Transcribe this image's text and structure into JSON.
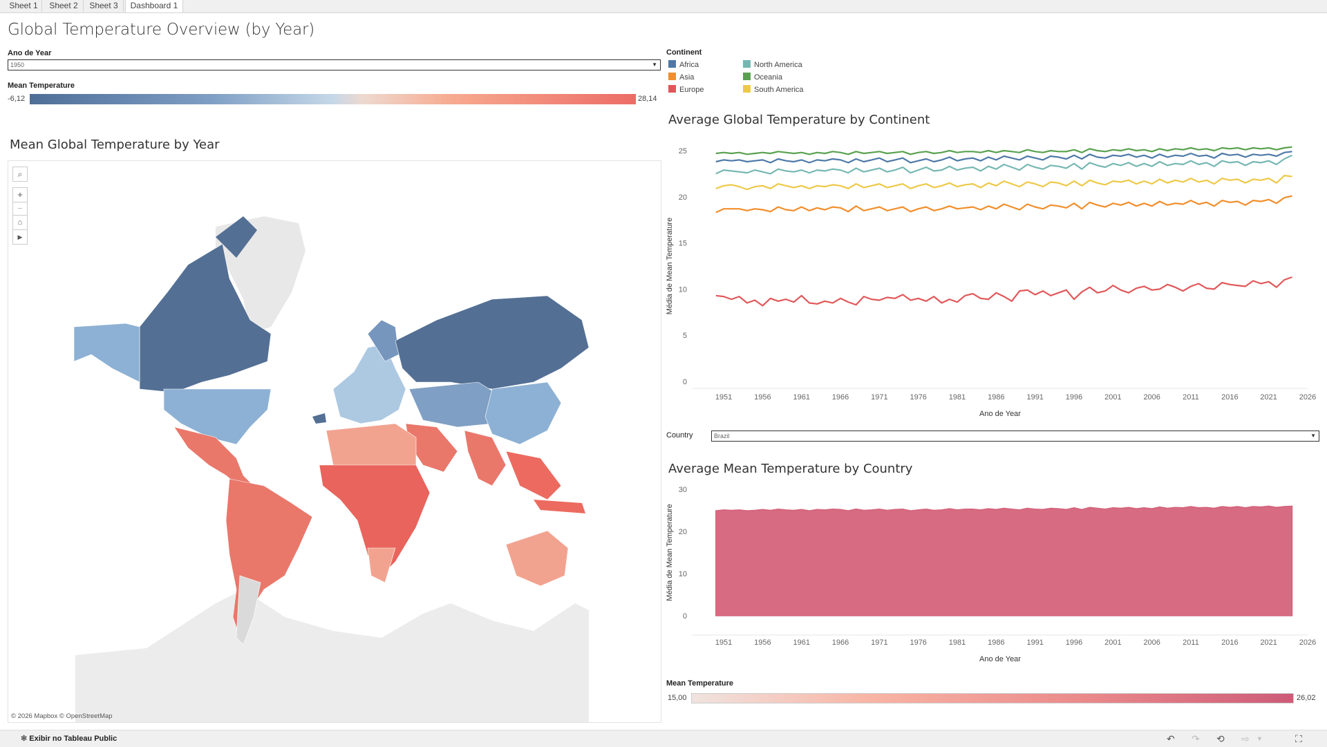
{
  "tabs": [
    {
      "label": "Sheet 1"
    },
    {
      "label": "Sheet 2"
    },
    {
      "label": "Sheet 3"
    },
    {
      "label": "Dashboard 1"
    }
  ],
  "dashboard": {
    "title": "Global Temperature Overview (by Year)"
  },
  "year_filter": {
    "label": "Ano de Year",
    "value": "1950"
  },
  "mean_temp_legend": {
    "label": "Mean Temperature",
    "min": "-6,12",
    "max": "28,14"
  },
  "continent_legend": {
    "label": "Continent",
    "items": [
      {
        "name": "Africa",
        "color": "#4e79a7"
      },
      {
        "name": "Asia",
        "color": "#f28e2b"
      },
      {
        "name": "Europe",
        "color": "#e15759"
      },
      {
        "name": "North America",
        "color": "#76b7b2"
      },
      {
        "name": "Oceania",
        "color": "#59a14f"
      },
      {
        "name": "South America",
        "color": "#edc948"
      }
    ]
  },
  "map": {
    "title": "Mean Global Temperature by Year",
    "attribution": "© 2026 Mapbox  © OpenStreetMap",
    "controls": {
      "search": "search-icon",
      "zoom_in": "plus-icon",
      "zoom_out": "minus-icon",
      "home": "home-icon",
      "pan": "play-icon"
    }
  },
  "country_filter": {
    "label": "Country",
    "value": "Brazil"
  },
  "country_legend": {
    "label": "Mean Temperature",
    "min": "15,00",
    "max": "26,02"
  },
  "bottom_bar": {
    "tableau_link": "Exibir no Tableau Public"
  },
  "chart_data": [
    {
      "type": "line",
      "title": "Average Global Temperature by Continent",
      "xlabel": "Ano de Year",
      "ylabel": "Média de Mean Temperature",
      "xlim": [
        1947,
        2026
      ],
      "ylim": [
        0,
        25
      ],
      "x_ticks": [
        "1951",
        "1956",
        "1961",
        "1966",
        "1971",
        "1976",
        "1981",
        "1986",
        "1991",
        "1996",
        "2001",
        "2006",
        "2011",
        "2016",
        "2021",
        "2026"
      ],
      "y_ticks": [
        "0",
        "5",
        "10",
        "15",
        "20",
        "25"
      ],
      "x_start": 1950,
      "x_end": 2024,
      "series": [
        {
          "name": "Oceania",
          "color": "#59a14f",
          "values": [
            24.7,
            24.8,
            24.7,
            24.8,
            24.6,
            24.7,
            24.8,
            24.7,
            24.9,
            24.8,
            24.7,
            24.8,
            24.6,
            24.8,
            24.7,
            24.9,
            24.8,
            24.6,
            24.9,
            24.7,
            24.8,
            24.9,
            24.7,
            24.8,
            24.9,
            24.6,
            24.8,
            24.9,
            24.7,
            24.8,
            25.0,
            24.8,
            24.9,
            24.9,
            24.8,
            25.0,
            24.8,
            25.0,
            24.9,
            24.8,
            25.1,
            24.9,
            24.8,
            25.0,
            24.9,
            24.9,
            25.1,
            24.8,
            25.2,
            25.0,
            24.9,
            25.1,
            25.0,
            25.2,
            25.0,
            25.1,
            24.9,
            25.2,
            25.0,
            25.2,
            25.1,
            25.3,
            25.1,
            25.2,
            25.0,
            25.3,
            25.2,
            25.3,
            25.1,
            25.3,
            25.2,
            25.3,
            25.1,
            25.3,
            25.4
          ]
        },
        {
          "name": "Africa",
          "color": "#4e79a7",
          "values": [
            23.8,
            24.0,
            23.9,
            24.0,
            23.8,
            23.9,
            24.0,
            23.7,
            24.1,
            23.9,
            23.8,
            24.0,
            23.7,
            24.0,
            23.9,
            24.1,
            24.0,
            23.7,
            24.1,
            23.8,
            24.0,
            24.2,
            23.8,
            24.0,
            24.2,
            23.7,
            23.9,
            24.1,
            23.8,
            24.0,
            24.3,
            23.9,
            24.1,
            24.2,
            23.9,
            24.3,
            24.0,
            24.4,
            24.2,
            24.0,
            24.4,
            24.2,
            24.0,
            24.4,
            24.3,
            24.1,
            24.5,
            24.1,
            24.6,
            24.3,
            24.2,
            24.5,
            24.4,
            24.6,
            24.3,
            24.5,
            24.2,
            24.6,
            24.3,
            24.5,
            24.4,
            24.7,
            24.4,
            24.5,
            24.2,
            24.7,
            24.5,
            24.6,
            24.3,
            24.6,
            24.5,
            24.6,
            24.4,
            24.8,
            24.9
          ]
        },
        {
          "name": "North America",
          "color": "#76b7b2",
          "values": [
            22.5,
            22.9,
            22.8,
            22.7,
            22.6,
            22.9,
            22.7,
            22.5,
            23.0,
            22.8,
            22.7,
            22.9,
            22.6,
            22.9,
            22.8,
            23.0,
            22.9,
            22.6,
            23.1,
            22.7,
            22.9,
            23.1,
            22.7,
            22.9,
            23.2,
            22.6,
            22.9,
            23.2,
            22.8,
            22.9,
            23.3,
            22.9,
            23.1,
            23.2,
            22.8,
            23.3,
            23.0,
            23.5,
            23.2,
            22.9,
            23.5,
            23.2,
            23.0,
            23.4,
            23.3,
            23.1,
            23.6,
            23.0,
            23.7,
            23.4,
            23.2,
            23.6,
            23.4,
            23.7,
            23.3,
            23.6,
            23.3,
            23.8,
            23.4,
            23.6,
            23.5,
            23.9,
            23.5,
            23.7,
            23.3,
            23.9,
            23.7,
            23.8,
            23.4,
            23.8,
            23.7,
            23.9,
            23.5,
            24.1,
            24.5
          ]
        },
        {
          "name": "South America",
          "color": "#edc948",
          "values": [
            20.9,
            21.2,
            21.3,
            21.1,
            20.8,
            21.1,
            21.2,
            20.9,
            21.4,
            21.2,
            21.0,
            21.2,
            20.9,
            21.2,
            21.1,
            21.3,
            21.2,
            20.9,
            21.4,
            21.0,
            21.2,
            21.4,
            21.0,
            21.2,
            21.4,
            20.9,
            21.2,
            21.4,
            21.0,
            21.2,
            21.5,
            21.1,
            21.3,
            21.4,
            21.0,
            21.5,
            21.2,
            21.7,
            21.4,
            21.1,
            21.6,
            21.4,
            21.1,
            21.6,
            21.5,
            21.2,
            21.7,
            21.2,
            21.8,
            21.5,
            21.3,
            21.7,
            21.6,
            21.8,
            21.4,
            21.7,
            21.4,
            21.9,
            21.5,
            21.8,
            21.6,
            22.0,
            21.6,
            21.8,
            21.4,
            22.0,
            21.8,
            21.9,
            21.5,
            21.9,
            21.8,
            22.0,
            21.5,
            22.3,
            22.2
          ]
        },
        {
          "name": "Asia",
          "color": "#f28e2b",
          "values": [
            18.3,
            18.7,
            18.7,
            18.7,
            18.5,
            18.7,
            18.6,
            18.4,
            18.9,
            18.6,
            18.5,
            18.9,
            18.5,
            18.8,
            18.6,
            18.9,
            18.8,
            18.4,
            19.0,
            18.5,
            18.7,
            18.9,
            18.5,
            18.7,
            18.9,
            18.4,
            18.7,
            18.9,
            18.5,
            18.7,
            19.0,
            18.7,
            18.8,
            18.9,
            18.6,
            19.0,
            18.7,
            19.2,
            18.9,
            18.6,
            19.2,
            18.9,
            18.7,
            19.1,
            19.0,
            18.8,
            19.3,
            18.7,
            19.4,
            19.1,
            18.9,
            19.3,
            19.1,
            19.4,
            19.0,
            19.3,
            19.0,
            19.5,
            19.1,
            19.3,
            19.2,
            19.6,
            19.2,
            19.4,
            19.0,
            19.6,
            19.4,
            19.5,
            19.1,
            19.6,
            19.5,
            19.7,
            19.3,
            19.9,
            20.1
          ]
        },
        {
          "name": "Europe",
          "color": "#e15759",
          "values": [
            9.3,
            9.2,
            8.9,
            9.2,
            8.5,
            8.8,
            8.2,
            9.0,
            8.7,
            8.9,
            8.6,
            9.3,
            8.5,
            8.4,
            8.7,
            8.5,
            9.0,
            8.6,
            8.3,
            9.2,
            8.9,
            8.8,
            9.1,
            9.0,
            9.4,
            8.8,
            9.0,
            8.7,
            9.2,
            8.5,
            8.9,
            8.6,
            9.3,
            9.5,
            9.0,
            8.9,
            9.6,
            9.2,
            8.7,
            9.8,
            9.9,
            9.4,
            9.8,
            9.3,
            9.6,
            9.9,
            8.9,
            9.7,
            10.2,
            9.6,
            9.8,
            10.4,
            9.9,
            9.6,
            10.1,
            10.3,
            9.9,
            10.0,
            10.5,
            10.2,
            9.8,
            10.3,
            10.6,
            10.1,
            10.0,
            10.7,
            10.5,
            10.4,
            10.3,
            10.9,
            10.6,
            10.8,
            10.2,
            11.0,
            11.3
          ]
        }
      ]
    },
    {
      "type": "area",
      "title": "Average Mean Temperature by Country",
      "xlabel": "Ano de Year",
      "ylabel": "Média de Mean Temperature",
      "xlim": [
        1947,
        2026
      ],
      "ylim": [
        0,
        30
      ],
      "x_ticks": [
        "1951",
        "1956",
        "1961",
        "1966",
        "1971",
        "1976",
        "1981",
        "1986",
        "1991",
        "1996",
        "2001",
        "2006",
        "2011",
        "2016",
        "2021",
        "2026"
      ],
      "y_ticks": [
        "0",
        "10",
        "20",
        "30"
      ],
      "x_start": 1950,
      "x_end": 2024,
      "series": [
        {
          "name": "Brazil",
          "color": "#d4637a",
          "values": [
            24.9,
            25.1,
            25.0,
            25.1,
            24.9,
            25.0,
            25.2,
            25.0,
            25.3,
            25.1,
            25.0,
            25.2,
            24.9,
            25.2,
            25.1,
            25.3,
            25.2,
            24.9,
            25.3,
            25.0,
            25.1,
            25.3,
            25.0,
            25.2,
            25.3,
            24.9,
            25.1,
            25.3,
            25.0,
            25.1,
            25.4,
            25.1,
            25.3,
            25.3,
            25.1,
            25.4,
            25.2,
            25.5,
            25.3,
            25.1,
            25.5,
            25.3,
            25.2,
            25.5,
            25.4,
            25.2,
            25.6,
            25.2,
            25.7,
            25.5,
            25.3,
            25.6,
            25.5,
            25.7,
            25.4,
            25.6,
            25.4,
            25.8,
            25.5,
            25.7,
            25.6,
            25.9,
            25.6,
            25.7,
            25.5,
            25.9,
            25.7,
            25.9,
            25.6,
            25.9,
            25.8,
            26.0,
            25.7,
            25.9,
            26.0
          ]
        }
      ]
    }
  ]
}
